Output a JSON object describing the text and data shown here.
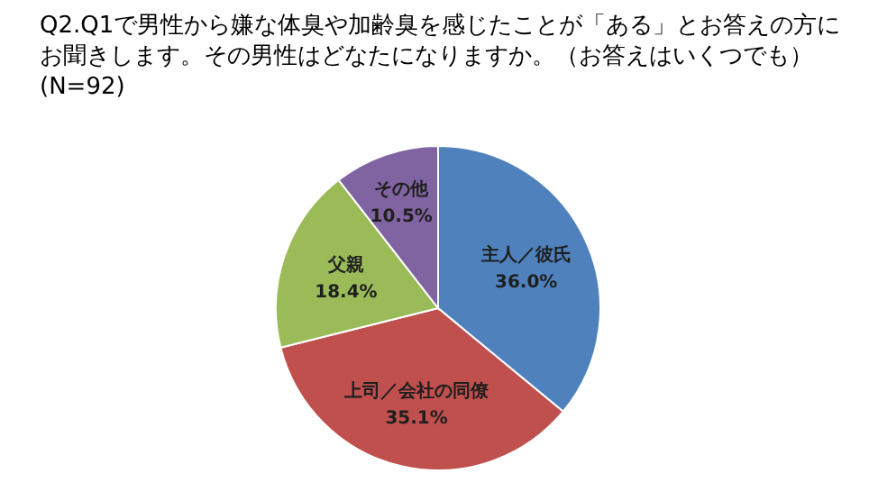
{
  "chart_data": {
    "type": "pie",
    "title": "Q2.Q1で男性から嫌な体臭や加齢臭を感じたことが「ある」とお答えの方にお聞きします。その男性はどなたになりますか。（お答えはいくつでも）(N=92)",
    "categories": [
      "主人／彼氏",
      "上司／会社の同僚",
      "父親",
      "その他"
    ],
    "values": [
      36.0,
      35.1,
      18.4,
      10.5
    ],
    "colors": [
      "#4f81bd",
      "#c0504d",
      "#9bbb59",
      "#8064a2"
    ],
    "value_labels": [
      "36.0%",
      "35.1%",
      "18.4%",
      "10.5%"
    ]
  }
}
